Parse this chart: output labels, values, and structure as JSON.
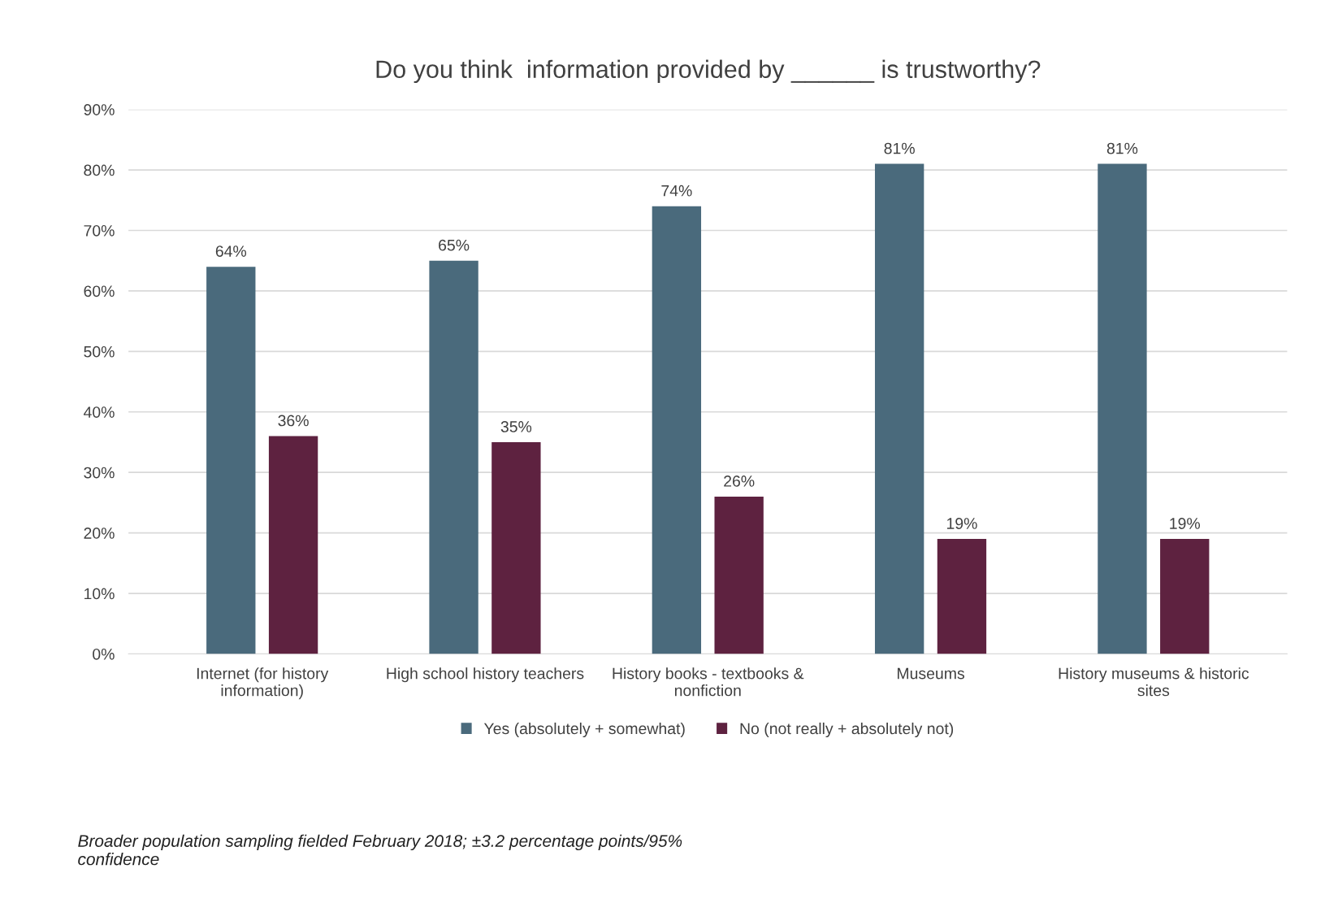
{
  "chart_data": {
    "type": "bar",
    "title": "Do you think  information provided by ______ is trustworthy?",
    "categories": [
      "Internet (for history\ninformation)",
      "High school history teachers",
      "History books - textbooks &\nnonfiction",
      "Museums",
      "History museums & historic\nsites"
    ],
    "series": [
      {
        "name": "Yes (absolutely + somewhat)",
        "color": "#4a6a7c",
        "values": [
          64,
          65,
          74,
          81,
          81
        ],
        "value_labels": [
          "64%",
          "65%",
          "74%",
          "81%",
          "81%"
        ]
      },
      {
        "name": "No (not really + absolutely not)",
        "color": "#5e2240",
        "values": [
          36,
          35,
          26,
          19,
          19
        ],
        "value_labels": [
          "36%",
          "35%",
          "26%",
          "19%",
          "19%"
        ]
      }
    ],
    "ylim": [
      0,
      90
    ],
    "yticks": [
      {
        "value": 0,
        "label": "0%"
      },
      {
        "value": 10,
        "label": "10%"
      },
      {
        "value": 20,
        "label": "20%"
      },
      {
        "value": 30,
        "label": "30%"
      },
      {
        "value": 40,
        "label": "40%"
      },
      {
        "value": 50,
        "label": "50%"
      },
      {
        "value": 60,
        "label": "60%"
      },
      {
        "value": 70,
        "label": "70%"
      },
      {
        "value": 80,
        "label": "80%"
      },
      {
        "value": 90,
        "label": "90%"
      }
    ],
    "grid": "y",
    "legend": "bottom",
    "annotations": [
      "Broader population sampling fielded February 2018; ±3.2 percentage points/95%\nconfidence"
    ]
  }
}
